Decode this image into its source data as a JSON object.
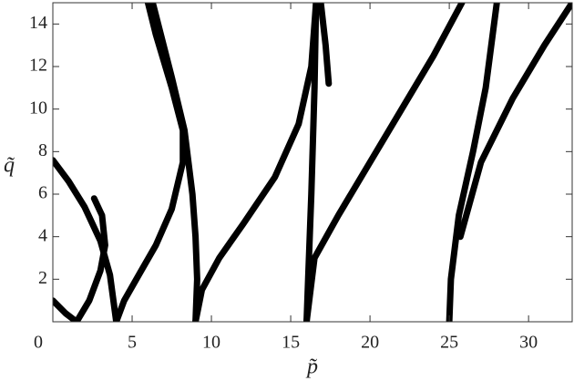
{
  "chart_data": {
    "type": "line",
    "x_label": "p̃",
    "y_label": "q̃",
    "xlim": [
      0,
      32.75
    ],
    "ylim": [
      0,
      15
    ],
    "xticks": [
      0,
      5,
      10,
      15,
      20,
      25,
      30
    ],
    "yticks": [
      2,
      4,
      6,
      8,
      10,
      12,
      14
    ],
    "series": [
      {
        "color": "#000000",
        "x": [
          0,
          1,
          2,
          3,
          3.6,
          4
        ],
        "values": [
          7.6,
          6.6,
          5.4,
          3.8,
          2.2,
          0
        ]
      },
      {
        "color": "#000000",
        "x": [
          0,
          0.8,
          1.5,
          2.3,
          3,
          3.3,
          3.1,
          2.6
        ],
        "values": [
          1,
          0.4,
          0,
          1,
          2.4,
          3.6,
          5,
          5.8
        ]
      },
      {
        "color": "#000000",
        "x": [
          4,
          4.5,
          5.5,
          6.5,
          7.5,
          8.2,
          8.2,
          7.5,
          6.5,
          6
        ],
        "values": [
          0,
          1,
          2.3,
          3.6,
          5.3,
          7.5,
          9,
          11,
          13.5,
          15
        ]
      },
      {
        "color": "#000000",
        "x": [
          9,
          9.1,
          9,
          8.8,
          8.3,
          7.5,
          6.3
        ],
        "values": [
          0,
          2,
          4,
          6,
          9,
          11.5,
          15
        ]
      },
      {
        "color": "#000000",
        "x": [
          9,
          9.4,
          10.5,
          12,
          14,
          15.5,
          16.3,
          16.6
        ],
        "values": [
          0,
          1.5,
          3,
          4.6,
          6.8,
          9.3,
          12,
          15
        ]
      },
      {
        "color": "#000000",
        "x": [
          16,
          16.1,
          16.3,
          16.5,
          16.6
        ],
        "values": [
          0,
          2,
          6,
          11,
          15
        ]
      },
      {
        "color": "#000000",
        "x": [
          16.9,
          17.2,
          17.4
        ],
        "values": [
          15,
          13,
          11.2
        ]
      },
      {
        "color": "#000000",
        "x": [
          16,
          16.5,
          18,
          20,
          22,
          24,
          25.8
        ],
        "values": [
          0,
          3,
          5,
          7.5,
          10,
          12.5,
          15
        ]
      },
      {
        "color": "#000000",
        "x": [
          25,
          25.1,
          25.6,
          26.5,
          27.3,
          28
        ],
        "values": [
          0,
          2,
          5,
          8,
          11,
          15
        ]
      },
      {
        "color": "#000000",
        "x": [
          25.7,
          27,
          29,
          31,
          32.75
        ],
        "values": [
          4,
          7.5,
          10.5,
          13,
          15
        ]
      }
    ]
  }
}
